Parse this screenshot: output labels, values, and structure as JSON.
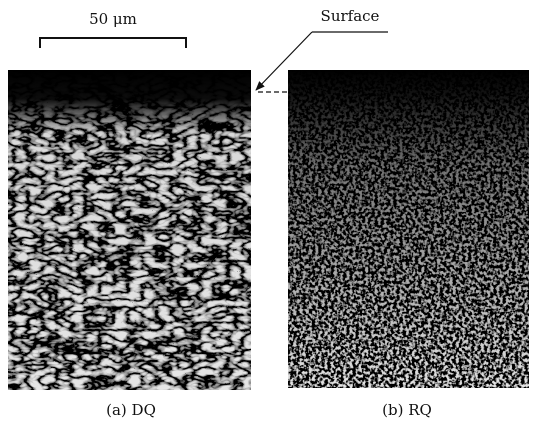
{
  "scale_bar": {
    "label": "50 μm"
  },
  "annotation": {
    "label": "Surface"
  },
  "panels": [
    {
      "caption": "(a) DQ"
    },
    {
      "caption": "(b) RQ"
    }
  ]
}
